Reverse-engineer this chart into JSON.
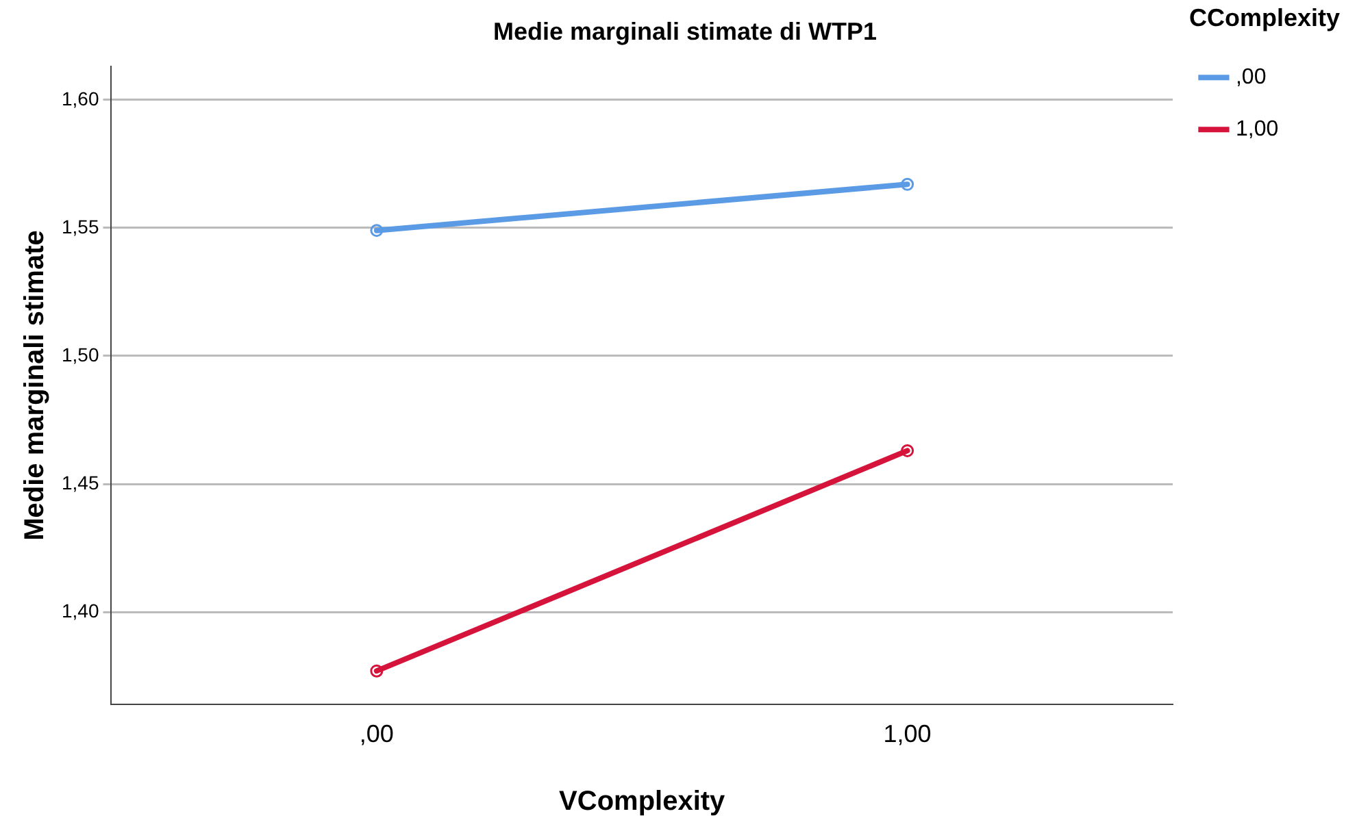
{
  "chart_data": {
    "type": "line",
    "title": "Medie marginali stimate di WTP1",
    "xlabel": "VComplexity",
    "ylabel": "Medie marginali stimate",
    "legend_title": "CComplexity",
    "categories": [
      ",00",
      "1,00"
    ],
    "series": [
      {
        "name": ",00",
        "color": "#5b9be6",
        "values": [
          1.549,
          1.567
        ]
      },
      {
        "name": "1,00",
        "color": "#d5133b",
        "values": [
          1.377,
          1.463
        ]
      }
    ],
    "ylim": [
      1.364,
      1.613
    ],
    "yticks": [
      {
        "value": 1.4,
        "label": "1,40"
      },
      {
        "value": 1.45,
        "label": "1,45"
      },
      {
        "value": 1.5,
        "label": "1,50"
      },
      {
        "value": 1.55,
        "label": "1,55"
      },
      {
        "value": 1.6,
        "label": "1,60"
      }
    ],
    "grid": "y",
    "legend": "top right",
    "marker": "circle",
    "line_style": "solid"
  }
}
